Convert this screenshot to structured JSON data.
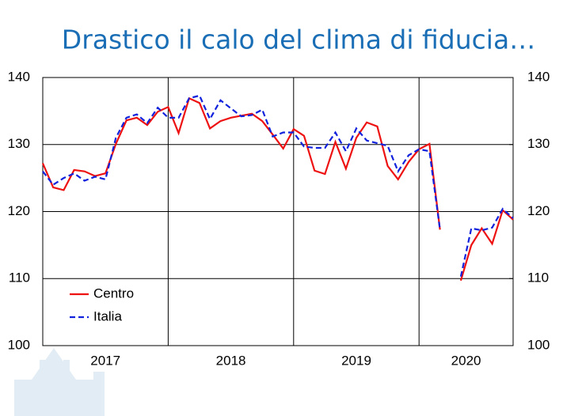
{
  "chart_data": {
    "type": "line",
    "title": "Drastico il calo del clima di fiducia…",
    "x": [
      2017,
      2017.083,
      2017.167,
      2017.25,
      2017.333,
      2017.417,
      2017.5,
      2017.583,
      2017.667,
      2017.75,
      2017.833,
      2017.917,
      2018,
      2018.083,
      2018.167,
      2018.25,
      2018.333,
      2018.417,
      2018.5,
      2018.583,
      2018.667,
      2018.75,
      2018.833,
      2018.917,
      2019,
      2019.083,
      2019.167,
      2019.25,
      2019.333,
      2019.417,
      2019.5,
      2019.583,
      2019.667,
      2019.75,
      2019.833,
      2019.917,
      2020,
      2020.083,
      2020.167,
      2020.25,
      2020.333,
      2020.417,
      2020.5,
      2020.583,
      2020.667,
      2020.75
    ],
    "series": [
      {
        "name": "Centro",
        "color": "#ee1111",
        "dash": false,
        "values": [
          127.2,
          123.6,
          123.2,
          126.2,
          126.0,
          125.3,
          125.7,
          130.1,
          133.6,
          134.0,
          132.9,
          134.9,
          135.6,
          131.7,
          136.9,
          136.2,
          132.4,
          133.5,
          134.0,
          134.3,
          134.6,
          133.5,
          131.5,
          129.4,
          132.3,
          131.3,
          126.1,
          125.6,
          130.4,
          126.4,
          131.0,
          133.3,
          132.7,
          126.8,
          124.8,
          127.4,
          129.3,
          130.1,
          117.3,
          null,
          109.7,
          115.0,
          117.5,
          115.2,
          120.2,
          118.8
        ]
      },
      {
        "name": "Italia",
        "color": "#1122dd",
        "dash": true,
        "values": [
          126.0,
          124.0,
          125.0,
          125.7,
          124.6,
          125.2,
          124.8,
          131.0,
          134.0,
          134.5,
          133.2,
          135.5,
          134.0,
          134.0,
          136.9,
          137.3,
          133.8,
          136.6,
          135.4,
          134.2,
          134.4,
          135.2,
          131.2,
          131.8,
          131.8,
          129.7,
          129.5,
          129.5,
          131.8,
          129.0,
          132.4,
          130.6,
          130.2,
          129.8,
          126.0,
          128.4,
          129.3,
          129.0,
          117.3,
          null,
          110.3,
          117.5,
          117.2,
          117.6,
          120.4,
          119.0
        ]
      }
    ],
    "xlim": [
      2017,
      2020.75
    ],
    "xticks": [
      {
        "value": 2017.5,
        "label": "2017"
      },
      {
        "value": 2018.5,
        "label": "2018"
      },
      {
        "value": 2019.5,
        "label": "2019"
      },
      {
        "value": 2020.375,
        "label": "2020"
      }
    ],
    "xgrid": [
      2018,
      2019,
      2020
    ],
    "ylim": [
      100,
      140
    ],
    "yticks": [
      100,
      110,
      120,
      130,
      140
    ],
    "y2lim": [
      100,
      140
    ],
    "y2ticks": [
      100,
      110,
      120,
      130,
      140
    ],
    "grid": true,
    "legend": "lower left"
  }
}
